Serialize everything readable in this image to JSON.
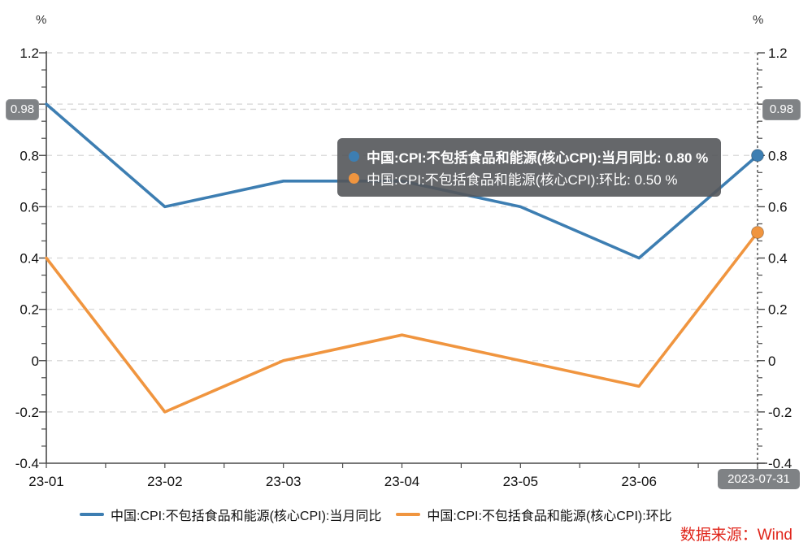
{
  "chart_data": {
    "type": "line",
    "title": "",
    "x": [
      "23-01",
      "23-02",
      "23-03",
      "23-04",
      "23-05",
      "23-06",
      "23-07"
    ],
    "series": [
      {
        "name": "中国:CPI:不包括食品和能源(核心CPI):当月同比",
        "color": "#3d7eb2",
        "values": [
          1.0,
          0.6,
          0.7,
          0.7,
          0.6,
          0.4,
          0.8
        ]
      },
      {
        "name": "中国:CPI:不包括食品和能源(核心CPI):环比",
        "color": "#f0953f",
        "values": [
          0.4,
          -0.2,
          0.0,
          0.1,
          0.0,
          -0.1,
          0.5
        ]
      }
    ],
    "ylim": [
      -0.4,
      1.2
    ],
    "y_ticks": [
      1.2,
      1.0,
      0.8,
      0.6,
      0.4,
      0.2,
      0,
      -0.2,
      -0.4
    ],
    "y_tick_labels": [
      "1.2",
      "1",
      "0.8",
      "0.6",
      "0.4",
      "0.2",
      "0",
      "-0.2",
      "-0.4"
    ],
    "y_unit": "%",
    "grid": "horizontal-dashed",
    "legend_position": "bottom"
  },
  "axis_units": {
    "left": "%",
    "right": "%"
  },
  "crosshair": {
    "y_label": "0.98",
    "y_value": 0.98,
    "x_index": 6,
    "date_label": "2023-07-31"
  },
  "tooltip": {
    "rows": [
      {
        "text": "中国:CPI:不包括食品和能源(核心CPI):当月同比: 0.80  %",
        "color": "#3d7eb2"
      },
      {
        "text": "中国:CPI:不包括食品和能源(核心CPI):环比: 0.50  %",
        "color": "#f0953f"
      }
    ]
  },
  "legend": [
    {
      "label": "中国:CPI:不包括食品和能源(核心CPI):当月同比",
      "color": "#3d7eb2"
    },
    {
      "label": "中国:CPI:不包括食品和能源(核心CPI):环比",
      "color": "#f0953f"
    }
  ],
  "source": {
    "text": "数据来源：Wind",
    "color": "#e0251b"
  }
}
